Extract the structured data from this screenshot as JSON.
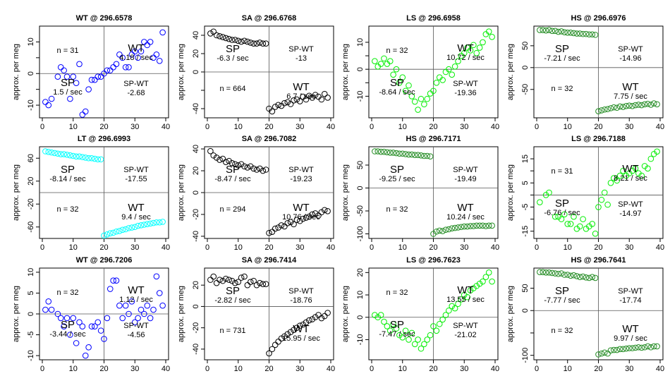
{
  "panels_meta": {
    "ylabel": "approx. per meg",
    "xticks": [
      0,
      10,
      20,
      30,
      40
    ]
  },
  "chart_data": [
    {
      "type": "scatter",
      "title": "WT @ 296.6578",
      "ylabel": "approx. per meg",
      "color": "#0000ff",
      "xlim": [
        0,
        40
      ],
      "ylim": [
        -14,
        15
      ],
      "yticks": [
        -10,
        -5,
        0,
        5,
        10
      ],
      "yticklabels": [
        "-10",
        "",
        "0",
        "",
        "10"
      ],
      "n_label": "n = 31",
      "n_pos": "top-left",
      "sp_label": "SP",
      "sp_rate": "1.5 / sec",
      "wt_label": "WT",
      "wt_rate": "4.18 / sec",
      "diff_label": "SP-WT",
      "diff_value": "-2.68",
      "x": [
        1,
        2,
        3,
        5,
        6,
        7,
        8,
        9,
        10,
        11,
        12,
        13,
        14,
        15,
        16,
        17,
        18,
        19,
        20,
        21,
        22,
        23,
        24,
        25,
        26,
        27,
        28,
        29,
        30,
        31,
        32,
        33,
        34,
        35,
        36,
        37,
        38,
        39
      ],
      "y": [
        -9,
        -10,
        -8,
        -1,
        2,
        1,
        -1,
        -8,
        -1,
        -3,
        3,
        -13,
        -12,
        -5,
        -2,
        -2,
        -1,
        -1,
        0,
        1,
        1,
        2,
        3,
        6,
        5,
        2,
        2,
        6,
        7,
        5,
        7,
        10,
        9,
        10,
        5,
        6,
        4,
        13
      ]
    },
    {
      "type": "scatter",
      "title": "SA @ 296.6768",
      "ylabel": "approx. per meg",
      "color": "#000000",
      "xlim": [
        0,
        40
      ],
      "ylim": [
        -50,
        50
      ],
      "yticks": [
        -40,
        -20,
        0,
        20,
        40
      ],
      "yticklabels": [
        "-40",
        "",
        "0",
        "20",
        "40"
      ],
      "n_label": "n = 664",
      "n_pos": "bottom-left",
      "sp_label": "SP",
      "sp_rate": "-6.3 / sec",
      "wt_label": "WT",
      "wt_rate": "6.7 / sec",
      "diff_label": "SP-WT",
      "diff_value": "-13",
      "x": [
        1,
        2,
        3,
        4,
        5,
        6,
        7,
        8,
        9,
        10,
        11,
        12,
        13,
        14,
        15,
        16,
        17,
        18,
        19,
        20,
        21,
        22,
        23,
        24,
        25,
        26,
        27,
        28,
        29,
        30,
        31,
        32,
        33,
        34,
        35,
        36,
        37,
        38,
        39
      ],
      "y": [
        42,
        44,
        40,
        39,
        38,
        37,
        36,
        35,
        35,
        34,
        33,
        34,
        33,
        32,
        31,
        31,
        32,
        31,
        31,
        -40,
        -43,
        -38,
        -36,
        -37,
        -34,
        -33,
        -35,
        -31,
        -30,
        -32,
        -27,
        -30,
        -26,
        -28,
        -25,
        -27,
        -30,
        -24,
        -28
      ]
    },
    {
      "type": "scatter",
      "title": "LS @ 296.6958",
      "ylabel": "approx. per meg",
      "color": "#00ee00",
      "xlim": [
        0,
        40
      ],
      "ylim": [
        -18,
        16
      ],
      "yticks": [
        -10,
        -5,
        0,
        5,
        10
      ],
      "yticklabels": [
        "-10",
        "",
        "0",
        "",
        "10"
      ],
      "n_label": "n = 32",
      "n_pos": "top-left",
      "sp_label": "SP",
      "sp_rate": "-8.64 / sec",
      "wt_label": "WT",
      "wt_rate": "10.72 / sec",
      "diff_label": "SP-WT",
      "diff_value": "-19.36",
      "x": [
        1,
        2,
        3,
        4,
        5,
        6,
        7,
        8,
        9,
        10,
        11,
        12,
        13,
        14,
        15,
        16,
        17,
        18,
        19,
        20,
        21,
        22,
        23,
        24,
        25,
        26,
        27,
        28,
        29,
        30,
        31,
        32,
        33,
        34,
        35,
        36,
        37,
        38,
        39
      ],
      "y": [
        3,
        1,
        2,
        4,
        2,
        3,
        -2,
        0,
        -5,
        -3,
        -8,
        -6,
        -10,
        -12,
        -15,
        -11,
        -13,
        -11,
        -9,
        -8,
        -5,
        -3,
        -4,
        -1,
        0,
        -2,
        1,
        3,
        5,
        6,
        8,
        7,
        9,
        6,
        8,
        10,
        13,
        14,
        12
      ]
    },
    {
      "type": "scatter",
      "title": "HS @ 296.6976",
      "ylabel": "approx. per meg",
      "color": "#228b22",
      "xlim": [
        0,
        40
      ],
      "ylim": [
        -115,
        95
      ],
      "yticks": [
        -50,
        0,
        50
      ],
      "yticklabels": [
        "-50",
        "0",
        "50"
      ],
      "n_label": "n = 32",
      "n_pos": "bottom-left",
      "sp_label": "SP",
      "sp_rate": "-7.21 / sec",
      "wt_label": "WT",
      "wt_rate": "7.75 / sec",
      "diff_label": "SP-WT",
      "diff_value": "-14.96",
      "x": [
        1,
        2,
        3,
        4,
        5,
        6,
        7,
        8,
        9,
        10,
        11,
        12,
        13,
        14,
        15,
        16,
        17,
        18,
        19,
        20,
        21,
        22,
        23,
        24,
        25,
        26,
        27,
        28,
        29,
        30,
        31,
        32,
        33,
        34,
        35,
        36,
        37,
        38,
        39
      ],
      "y": [
        86,
        86,
        85,
        86,
        84,
        84,
        82,
        83,
        81,
        80,
        80,
        79,
        78,
        78,
        77,
        77,
        76,
        76,
        75,
        -100,
        -98,
        -96,
        -95,
        -93,
        -91,
        -92,
        -89,
        -90,
        -88,
        -87,
        -88,
        -86,
        -85,
        -86,
        -84,
        -83,
        -85,
        -82,
        -84
      ]
    },
    {
      "type": "scatter",
      "title": "LT @ 296.6993",
      "ylabel": "approx. per meg",
      "color": "#00ffff",
      "xlim": [
        0,
        40
      ],
      "ylim": [
        -80,
        80
      ],
      "yticks": [
        -60,
        -20,
        20,
        60
      ],
      "yticklabels": [
        "-60",
        "-20",
        "20",
        "60"
      ],
      "n_label": "n = 32",
      "n_pos": "bottom-left",
      "sp_label": "SP",
      "sp_rate": "-8.14 / sec",
      "wt_label": "WT",
      "wt_rate": "9.4 / sec",
      "diff_label": "SP-WT",
      "diff_value": "-17.55",
      "x": [
        1,
        2,
        3,
        4,
        5,
        6,
        7,
        8,
        9,
        10,
        11,
        12,
        13,
        14,
        15,
        16,
        17,
        18,
        19,
        20,
        21,
        22,
        23,
        24,
        25,
        26,
        27,
        28,
        29,
        30,
        31,
        32,
        33,
        34,
        35,
        36,
        37,
        38,
        39
      ],
      "y": [
        72,
        71,
        70,
        69,
        68,
        67,
        67,
        66,
        65,
        64,
        63,
        63,
        62,
        61,
        60,
        60,
        59,
        58,
        58,
        -75,
        -73,
        -71,
        -70,
        -68,
        -67,
        -65,
        -64,
        -62,
        -61,
        -60,
        -58,
        -57,
        -56,
        -55,
        -54,
        -53,
        -52,
        -52,
        -51
      ]
    },
    {
      "type": "scatter",
      "title": "SA @ 296.7082",
      "ylabel": "approx. per meg",
      "color": "#000000",
      "xlim": [
        0,
        40
      ],
      "ylim": [
        -42,
        42
      ],
      "yticks": [
        -40,
        -20,
        0,
        20,
        40
      ],
      "yticklabels": [
        "-40",
        "-20",
        "0",
        "20",
        "40"
      ],
      "n_label": "n = 294",
      "n_pos": "bottom-left",
      "sp_label": "SP",
      "sp_rate": "-8.47 / sec",
      "wt_label": "WT",
      "wt_rate": "10.76 / sec",
      "diff_label": "SP-WT",
      "diff_value": "-19.23",
      "x": [
        1,
        2,
        3,
        4,
        5,
        6,
        7,
        8,
        9,
        10,
        11,
        12,
        13,
        14,
        15,
        16,
        17,
        18,
        19,
        20,
        21,
        22,
        23,
        24,
        25,
        26,
        27,
        28,
        29,
        30,
        31,
        32,
        33,
        34,
        35,
        36,
        37,
        38,
        39
      ],
      "y": [
        38,
        34,
        32,
        30,
        31,
        28,
        29,
        27,
        26,
        25,
        26,
        24,
        23,
        24,
        22,
        21,
        22,
        20,
        21,
        -37,
        -36,
        -33,
        -32,
        -30,
        -31,
        -28,
        -27,
        -29,
        -25,
        -26,
        -24,
        -23,
        -22,
        -20,
        -19,
        -21,
        -18,
        -16,
        -17
      ]
    },
    {
      "type": "scatter",
      "title": "HS @ 296.7171",
      "ylabel": "approx. per meg",
      "color": "#228b22",
      "xlim": [
        0,
        40
      ],
      "ylim": [
        -110,
        90
      ],
      "yticks": [
        -100,
        -50,
        0,
        50
      ],
      "yticklabels": [
        "-100",
        "-50",
        "0",
        "50"
      ],
      "n_label": "n = 32",
      "n_pos": "bottom-left",
      "sp_label": "SP",
      "sp_rate": "-9.25 / sec",
      "wt_label": "WT",
      "wt_rate": "10.24 / sec",
      "diff_label": "SP-WT",
      "diff_value": "-19.49",
      "x": [
        1,
        2,
        3,
        4,
        5,
        6,
        7,
        8,
        9,
        10,
        11,
        12,
        13,
        14,
        15,
        16,
        17,
        18,
        19,
        20,
        21,
        22,
        23,
        24,
        25,
        26,
        27,
        28,
        29,
        30,
        31,
        32,
        33,
        34,
        35,
        36,
        37,
        38,
        39
      ],
      "y": [
        80,
        80,
        79,
        79,
        78,
        77,
        77,
        76,
        75,
        75,
        74,
        73,
        73,
        72,
        72,
        71,
        70,
        70,
        69,
        -100,
        -95,
        -93,
        -94,
        -91,
        -90,
        -88,
        -87,
        -86,
        -85,
        -84,
        -84,
        -83,
        -83,
        -82,
        -82,
        -82,
        -83,
        -82,
        -82
      ]
    },
    {
      "type": "scatter",
      "title": "LS @ 296.7188",
      "ylabel": "approx. per meg",
      "color": "#00ee00",
      "xlim": [
        0,
        40
      ],
      "ylim": [
        -18,
        20
      ],
      "yticks": [
        -15,
        -10,
        -5,
        0,
        5,
        10,
        15
      ],
      "yticklabels": [
        "-15",
        "",
        "-5",
        "",
        "5",
        "",
        "15"
      ],
      "n_label": "n = 31",
      "n_pos": "top-left",
      "sp_label": "SP",
      "sp_rate": "-6.76 / sec",
      "wt_label": "WT",
      "wt_rate": "8.21 / sec",
      "diff_label": "SP-WT",
      "diff_value": "-14.97",
      "x": [
        1,
        3,
        4,
        6,
        7,
        8,
        9,
        10,
        11,
        12,
        13,
        14,
        15,
        16,
        17,
        18,
        19,
        20,
        21,
        22,
        23,
        24,
        25,
        26,
        27,
        28,
        29,
        30,
        31,
        32,
        33,
        34,
        35,
        36,
        37,
        38,
        39
      ],
      "y": [
        -3,
        0,
        1,
        -9,
        -9,
        -10,
        -8,
        -12,
        -12,
        -9,
        -14,
        -13,
        -10,
        -14,
        -13,
        -12,
        -16,
        -5,
        -2,
        1,
        -4,
        5,
        7,
        6,
        8,
        10,
        8,
        9,
        10,
        11,
        9,
        8,
        12,
        11,
        15,
        17,
        18
      ]
    },
    {
      "type": "scatter",
      "title": "WT @ 296.7206",
      "ylabel": "approx. per meg",
      "color": "#0000ff",
      "xlim": [
        0,
        40
      ],
      "ylim": [
        -11,
        11
      ],
      "yticks": [
        -10,
        -5,
        0,
        5,
        10
      ],
      "yticklabels": [
        "-10",
        "-5",
        "0",
        "5",
        "10"
      ],
      "n_label": "n = 32",
      "n_pos": "top-left",
      "sp_label": "SP",
      "sp_rate": "-3.44 / sec",
      "wt_label": "WT",
      "wt_rate": "1.12 / sec",
      "diff_label": "SP-WT",
      "diff_value": "-4.56",
      "x": [
        1,
        2,
        3,
        5,
        6,
        7,
        8,
        9,
        10,
        11,
        12,
        13,
        14,
        15,
        16,
        17,
        18,
        19,
        20,
        21,
        22,
        23,
        24,
        25,
        26,
        27,
        28,
        29,
        30,
        31,
        32,
        33,
        34,
        35,
        36,
        37,
        38,
        39
      ],
      "y": [
        1,
        3,
        1,
        0,
        -1,
        -3,
        -1,
        -5,
        -1,
        -7,
        -2,
        -3,
        -10,
        -8,
        -3,
        -3,
        -2,
        -4,
        -6,
        -1,
        6,
        8,
        8,
        2,
        -1,
        2,
        0,
        3,
        -2,
        -1,
        1,
        0,
        2,
        -1,
        1,
        9,
        5,
        2
      ]
    },
    {
      "type": "scatter",
      "title": "SA @ 296.7414",
      "ylabel": "approx. per meg",
      "color": "#000000",
      "xlim": [
        0,
        40
      ],
      "ylim": [
        -50,
        36
      ],
      "yticks": [
        -40,
        -20,
        0,
        20
      ],
      "yticklabels": [
        "-40",
        "-20",
        "0",
        "20"
      ],
      "n_label": "n = 731",
      "n_pos": "bottom-left",
      "sp_label": "SP",
      "sp_rate": "-2.82 / sec",
      "wt_label": "WT",
      "wt_rate": "15.95 / sec",
      "diff_label": "SP-WT",
      "diff_value": "-18.76",
      "x": [
        1,
        2,
        3,
        4,
        5,
        6,
        7,
        8,
        9,
        10,
        11,
        12,
        13,
        14,
        15,
        16,
        17,
        18,
        19,
        20,
        21,
        22,
        23,
        24,
        25,
        26,
        27,
        28,
        29,
        30,
        31,
        32,
        33,
        34,
        35,
        36,
        37,
        38,
        39
      ],
      "y": [
        25,
        28,
        22,
        25,
        24,
        26,
        25,
        24,
        22,
        23,
        27,
        28,
        20,
        23,
        24,
        20,
        22,
        21,
        21,
        -44,
        -40,
        -36,
        -33,
        -30,
        -28,
        -26,
        -24,
        -22,
        -20,
        -18,
        -17,
        -15,
        -13,
        -12,
        -10,
        -8,
        -11,
        -9,
        -6
      ]
    },
    {
      "type": "scatter",
      "title": "LS @ 296.7623",
      "ylabel": "approx. per meg",
      "color": "#00ee00",
      "xlim": [
        0,
        40
      ],
      "ylim": [
        -19,
        22
      ],
      "yticks": [
        -10,
        0,
        10,
        20
      ],
      "yticklabels": [
        "-10",
        "0",
        "10",
        "20"
      ],
      "n_label": "n = 32",
      "n_pos": "top-left",
      "sp_label": "SP",
      "sp_rate": "-7.47 / sec",
      "wt_label": "WT",
      "wt_rate": "13.55 / sec",
      "diff_label": "SP-WT",
      "diff_value": "-21.02",
      "x": [
        1,
        2,
        3,
        4,
        5,
        6,
        7,
        8,
        9,
        10,
        11,
        12,
        13,
        14,
        15,
        16,
        17,
        18,
        19,
        20,
        21,
        22,
        23,
        24,
        25,
        26,
        27,
        28,
        29,
        30,
        31,
        32,
        33,
        34,
        35,
        36,
        37,
        38,
        39
      ],
      "y": [
        1,
        0,
        1,
        -2,
        -4,
        -6,
        -3,
        -5,
        -8,
        -9,
        -6,
        -10,
        -7,
        -12,
        -10,
        -14,
        -12,
        -10,
        -8,
        -4,
        -6,
        -3,
        -1,
        1,
        3,
        5,
        4,
        6,
        8,
        10,
        9,
        12,
        13,
        14,
        15,
        16,
        18,
        20,
        16
      ]
    },
    {
      "type": "scatter",
      "title": "HS @ 296.7641",
      "ylabel": "approx. per meg",
      "color": "#228b22",
      "xlim": [
        0,
        40
      ],
      "ylim": [
        -110,
        95
      ],
      "yticks": [
        -100,
        -50,
        0,
        50
      ],
      "yticklabels": [
        "-100",
        "",
        "0",
        "50"
      ],
      "n_label": "n = 32",
      "n_pos": "bottom-left",
      "sp_label": "SP",
      "sp_rate": "-7.77 / sec",
      "wt_label": "WT",
      "wt_rate": "9.97 / sec",
      "diff_label": "SP-WT",
      "diff_value": "-17.74",
      "x": [
        1,
        2,
        3,
        4,
        5,
        6,
        7,
        8,
        9,
        10,
        11,
        12,
        13,
        14,
        15,
        16,
        17,
        18,
        19,
        20,
        21,
        22,
        23,
        24,
        25,
        26,
        27,
        28,
        29,
        30,
        31,
        32,
        33,
        34,
        35,
        36,
        37,
        38,
        39
      ],
      "y": [
        86,
        86,
        85,
        85,
        84,
        83,
        82,
        83,
        80,
        80,
        78,
        79,
        77,
        75,
        76,
        74,
        73,
        75,
        73,
        -98,
        -96,
        -94,
        -96,
        -89,
        -88,
        -88,
        -86,
        -86,
        -85,
        -84,
        -84,
        -83,
        -82,
        -83,
        -82,
        -80,
        -82,
        -80,
        -80
      ]
    }
  ]
}
